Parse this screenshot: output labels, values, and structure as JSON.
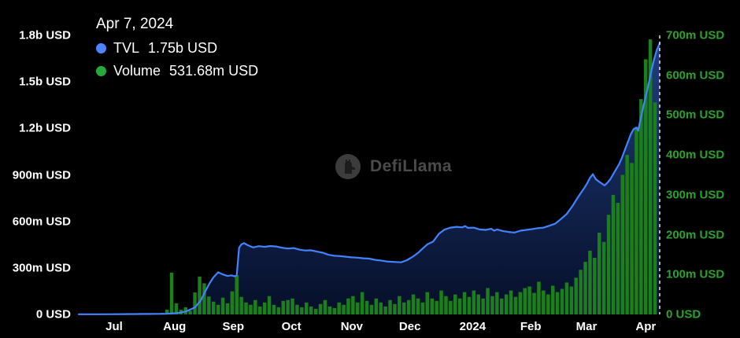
{
  "legend": {
    "date": "Apr 7, 2024",
    "tvl_label": "TVL",
    "tvl_value": "1.75b USD",
    "volume_label": "Volume",
    "volume_value": "531.68m USD"
  },
  "watermark": {
    "text": "DefiLlama"
  },
  "colors": {
    "background": "#000000",
    "tvl_line": "#4383ff",
    "tvl_fill_top": "rgba(64,124,255,0.50)",
    "tvl_fill_bottom": "rgba(14,34,92,0.45)",
    "tvl_dot": "#4f83ff",
    "volume_bar": "#1b7f1b",
    "volume_dot": "#25a93a",
    "left_axis_text": "#ffffff",
    "right_axis_text": "#2da12d",
    "x_axis_text": "#ffffff",
    "marker_line": "#e8e8e8",
    "watermark_text": "#4b4b4b"
  },
  "chart_data": {
    "type": "area",
    "title": "DeFiLlama TVL and Volume chart",
    "units": "millions USD",
    "legend_position": "top-left",
    "grid": false,
    "x_axis": {
      "ticks": [
        {
          "label": "Jul",
          "t": 0.061
        },
        {
          "label": "Aug",
          "t": 0.165
        },
        {
          "label": "Sep",
          "t": 0.266
        },
        {
          "label": "Oct",
          "t": 0.366
        },
        {
          "label": "Nov",
          "t": 0.47
        },
        {
          "label": "Dec",
          "t": 0.57
        },
        {
          "label": "2024",
          "t": 0.678
        },
        {
          "label": "Feb",
          "t": 0.778
        },
        {
          "label": "Mar",
          "t": 0.874
        },
        {
          "label": "Apr",
          "t": 0.976
        }
      ]
    },
    "left_axis": {
      "name": "TVL",
      "max": 1800,
      "ticks": [
        {
          "label": "1.8b USD",
          "value": 1800
        },
        {
          "label": "1.5b USD",
          "value": 1500
        },
        {
          "label": "1.2b USD",
          "value": 1200
        },
        {
          "label": "900m USD",
          "value": 900
        },
        {
          "label": "600m USD",
          "value": 600
        },
        {
          "label": "300m USD",
          "value": 300
        },
        {
          "label": "0 USD",
          "value": 0
        }
      ]
    },
    "right_axis": {
      "name": "Volume",
      "max": 700,
      "ticks": [
        {
          "label": "700m USD",
          "value": 700
        },
        {
          "label": "600m USD",
          "value": 600
        },
        {
          "label": "500m USD",
          "value": 500
        },
        {
          "label": "400m USD",
          "value": 400
        },
        {
          "label": "300m USD",
          "value": 300
        },
        {
          "label": "200m USD",
          "value": 200
        },
        {
          "label": "100m USD",
          "value": 100
        },
        {
          "label": "0 USD",
          "value": 0
        }
      ]
    },
    "series": [
      {
        "name": "TVL",
        "type": "area",
        "axis": "left",
        "points": [
          [
            0,
            1
          ],
          [
            0.04,
            1
          ],
          [
            0.08,
            2
          ],
          [
            0.12,
            3
          ],
          [
            0.15,
            4
          ],
          [
            0.17,
            8
          ],
          [
            0.185,
            20
          ],
          [
            0.2,
            45
          ],
          [
            0.21,
            90
          ],
          [
            0.218,
            150
          ],
          [
            0.225,
            200
          ],
          [
            0.232,
            240
          ],
          [
            0.24,
            272
          ],
          [
            0.248,
            258
          ],
          [
            0.256,
            248
          ],
          [
            0.263,
            252
          ],
          [
            0.268,
            246
          ],
          [
            0.272,
            252
          ],
          [
            0.276,
            430
          ],
          [
            0.28,
            452
          ],
          [
            0.285,
            460
          ],
          [
            0.29,
            448
          ],
          [
            0.3,
            432
          ],
          [
            0.31,
            440
          ],
          [
            0.32,
            436
          ],
          [
            0.33,
            441
          ],
          [
            0.34,
            438
          ],
          [
            0.35,
            430
          ],
          [
            0.36,
            425
          ],
          [
            0.37,
            428
          ],
          [
            0.38,
            418
          ],
          [
            0.39,
            412
          ],
          [
            0.4,
            414
          ],
          [
            0.41,
            405
          ],
          [
            0.42,
            398
          ],
          [
            0.43,
            385
          ],
          [
            0.44,
            378
          ],
          [
            0.45,
            376
          ],
          [
            0.46,
            372
          ],
          [
            0.47,
            368
          ],
          [
            0.48,
            366
          ],
          [
            0.49,
            362
          ],
          [
            0.5,
            360
          ],
          [
            0.51,
            352
          ],
          [
            0.52,
            348
          ],
          [
            0.53,
            342
          ],
          [
            0.545,
            338
          ],
          [
            0.555,
            336
          ],
          [
            0.565,
            350
          ],
          [
            0.575,
            372
          ],
          [
            0.585,
            400
          ],
          [
            0.595,
            435
          ],
          [
            0.6,
            452
          ],
          [
            0.61,
            470
          ],
          [
            0.62,
            520
          ],
          [
            0.63,
            548
          ],
          [
            0.64,
            560
          ],
          [
            0.65,
            565
          ],
          [
            0.66,
            562
          ],
          [
            0.665,
            570
          ],
          [
            0.67,
            558
          ],
          [
            0.68,
            560
          ],
          [
            0.69,
            548
          ],
          [
            0.7,
            545
          ],
          [
            0.71,
            552
          ],
          [
            0.715,
            540
          ],
          [
            0.72,
            548
          ],
          [
            0.73,
            538
          ],
          [
            0.74,
            532
          ],
          [
            0.75,
            528
          ],
          [
            0.76,
            540
          ],
          [
            0.77,
            545
          ],
          [
            0.78,
            550
          ],
          [
            0.79,
            556
          ],
          [
            0.8,
            560
          ],
          [
            0.81,
            572
          ],
          [
            0.82,
            585
          ],
          [
            0.83,
            615
          ],
          [
            0.84,
            648
          ],
          [
            0.85,
            700
          ],
          [
            0.86,
            760
          ],
          [
            0.87,
            815
          ],
          [
            0.875,
            845
          ],
          [
            0.88,
            880
          ],
          [
            0.885,
            905
          ],
          [
            0.89,
            872
          ],
          [
            0.895,
            858
          ],
          [
            0.9,
            845
          ],
          [
            0.905,
            832
          ],
          [
            0.91,
            850
          ],
          [
            0.915,
            872
          ],
          [
            0.92,
            905
          ],
          [
            0.93,
            968
          ],
          [
            0.935,
            1010
          ],
          [
            0.94,
            1060
          ],
          [
            0.945,
            1110
          ],
          [
            0.95,
            1160
          ],
          [
            0.955,
            1195
          ],
          [
            0.96,
            1205
          ],
          [
            0.963,
            1185
          ],
          [
            0.966,
            1240
          ],
          [
            0.97,
            1310
          ],
          [
            0.975,
            1390
          ],
          [
            0.98,
            1470
          ],
          [
            0.985,
            1560
          ],
          [
            0.99,
            1640
          ],
          [
            0.995,
            1706
          ],
          [
            1,
            1750
          ]
        ]
      },
      {
        "name": "Volume",
        "type": "bar",
        "axis": "right",
        "t0": 0,
        "dt": 0.008,
        "values": [
          0,
          0,
          0,
          0,
          0,
          0,
          0,
          0,
          1,
          0,
          1,
          1,
          1,
          2,
          1,
          2,
          3,
          2,
          4,
          12,
          105,
          28,
          12,
          18,
          9,
          55,
          95,
          78,
          45,
          32,
          24,
          42,
          28,
          58,
          98,
          44,
          30,
          24,
          36,
          20,
          30,
          46,
          24,
          18,
          34,
          36,
          40,
          24,
          18,
          30,
          20,
          14,
          26,
          36,
          20,
          16,
          30,
          24,
          40,
          46,
          30,
          56,
          34,
          24,
          40,
          30,
          20,
          36,
          26,
          46,
          30,
          36,
          50,
          40,
          30,
          56,
          40,
          34,
          60,
          46,
          34,
          50,
          40,
          56,
          44,
          60,
          50,
          40,
          66,
          46,
          56,
          40,
          50,
          60,
          44,
          56,
          66,
          70,
          54,
          82,
          60,
          50,
          72,
          56,
          64,
          80,
          70,
          92,
          112,
          132,
          160,
          142,
          205,
          182,
          250,
          300,
          280,
          350,
          400,
          380,
          470,
          540,
          640,
          690,
          532
        ]
      }
    ],
    "marker": {
      "t": 1.0,
      "style": "dashed",
      "note": "current date Apr 7, 2024"
    }
  }
}
